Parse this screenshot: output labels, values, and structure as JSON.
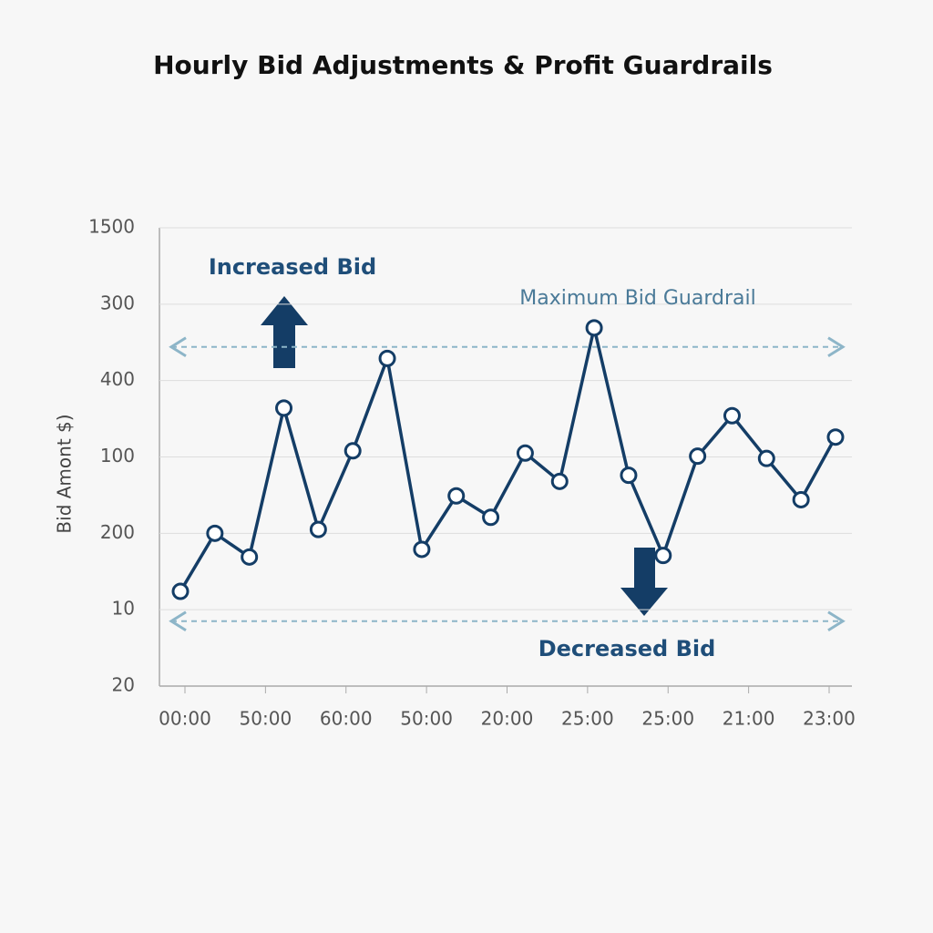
{
  "chart_data": {
    "type": "line",
    "title": "Hourly Bid Adjustments & Profit Guardrails",
    "y_label": "Bid Amont $)",
    "ylevels": [
      "20",
      "10",
      "200",
      "100",
      "400",
      "300",
      "1500"
    ],
    "ylim": [
      0,
      6
    ],
    "xlabels": [
      "00:00",
      "50:00",
      "60:00",
      "50:00",
      "20:00",
      "25:00",
      "25:00",
      "21:00",
      "23:00"
    ],
    "series": [
      {
        "color": "#143d66",
        "values": [
          1.24,
          2.0,
          1.69,
          3.64,
          2.05,
          3.08,
          4.29,
          1.79,
          2.49,
          2.21,
          3.05,
          2.68,
          4.69,
          2.76,
          1.71,
          3.01,
          3.54,
          2.98,
          2.44,
          3.26
        ]
      }
    ],
    "guardrails": [
      {
        "label": "Maximum Bid Guardrail",
        "value": 4.44,
        "color": "#8db5c8"
      },
      {
        "value": 0.85,
        "color": "#8db5c8"
      }
    ],
    "annotations": [
      "Increased Bid",
      "Decreased Bid"
    ],
    "grid": true
  }
}
